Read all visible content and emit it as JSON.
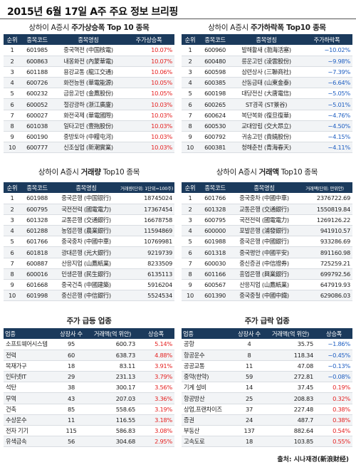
{
  "page": {
    "title": "2015년 6월 17일 A주 주요 정보 브리핑",
    "source": "출처: 시나재경(新浪财经)"
  },
  "gainers": {
    "title_prefix": "상하이 A증시 ",
    "title_bold": "주가상승폭 Top 10 종목",
    "headers": [
      "순위",
      "종목코드",
      "종목명칭",
      "주가상승폭"
    ],
    "rows": [
      [
        "1",
        "601985",
        "중국핵전 (中国核電)",
        "10.07%"
      ],
      [
        "2",
        "600863",
        "내몽화전 (內蒙華電)",
        "10.07%"
      ],
      [
        "3",
        "601188",
        "용강교통 (龍江交通)",
        "10.06%"
      ],
      [
        "4",
        "600726",
        "화전능원 (華電能源)",
        "10.05%"
      ],
      [
        "5",
        "600232",
        "금응고빈 (金鷹股份)",
        "10.05%"
      ],
      [
        "6",
        "600052",
        "절강광하 (浙江廣廈)",
        "10.03%"
      ],
      [
        "7",
        "600027",
        "화전국제 (華電國際)",
        "10.03%"
      ],
      [
        "8",
        "601038",
        "일타고빈 (壹拖股份)",
        "10.03%"
      ],
      [
        "9",
        "600190",
        "중방토아 (中糧屯河)",
        "10.03%"
      ],
      [
        "10",
        "600777",
        "신조실업 (新潮實業)",
        "10.03%"
      ]
    ]
  },
  "losers": {
    "title_prefix": "상하이 A증시 ",
    "title_bold": "주가하락폭 Top10 종목",
    "headers": [
      "순위",
      "종목코드",
      "종목명칭",
      "주가하락폭"
    ],
    "rows": [
      [
        "1",
        "600960",
        "발해활새 (渤海活塞)",
        "−10.02%"
      ],
      [
        "2",
        "600480",
        "릉운고빈 (淩雲股份)",
        "−9.98%"
      ],
      [
        "3",
        "600598",
        "삼련상사 (三聯商社)",
        "−7.39%"
      ],
      [
        "4",
        "600385",
        "산동금태 (山東金泰)",
        "−6.64%"
      ],
      [
        "5",
        "600198",
        "대당전신 (大唐電信)",
        "−5.05%"
      ],
      [
        "6",
        "600265",
        "ST경곡 (ST景谷)",
        "−5.01%"
      ],
      [
        "7",
        "600624",
        "복단복화 (復旦復華)",
        "−4.76%"
      ],
      [
        "8",
        "600530",
        "교대앙립 (交大昂立)",
        "−4.50%"
      ],
      [
        "9",
        "600792",
        "귀송고빈 (貴鐃股份)",
        "−4.15%"
      ],
      [
        "10",
        "600381",
        "청해춘천 (青海春天)",
        "−4.11%"
      ]
    ]
  },
  "volume_top": {
    "title_prefix": "상하이 A증시 ",
    "title_bold": "거래량",
    "title_suffix": " Top10 종목",
    "headers": [
      "순위",
      "종목코드",
      "종목명칭",
      "거래량(단위: 1단위=100주)"
    ],
    "rows": [
      [
        "1",
        "601988",
        "중국은행 (中国银行)",
        "18745024"
      ],
      [
        "2",
        "600795",
        "국전전력 (國電電力)",
        "17367454"
      ],
      [
        "3",
        "601328",
        "교통은행 (交通銀行)",
        "16678758"
      ],
      [
        "4",
        "601288",
        "농업은행 (農業銀行)",
        "11594869"
      ],
      [
        "5",
        "601766",
        "중국중차 (中國中車)",
        "10769981"
      ],
      [
        "6",
        "601818",
        "광대은행 (光大銀行)",
        "9219739"
      ],
      [
        "7",
        "600887",
        "산응지업 (山鷹紙業)",
        "8233509"
      ],
      [
        "8",
        "600016",
        "민생은행 (民生銀行)",
        "6135113"
      ],
      [
        "9",
        "601668",
        "중국건축 (中國建築)",
        "5916204"
      ],
      [
        "10",
        "601998",
        "중신은행 (中信銀行)",
        "5524534"
      ]
    ]
  },
  "value_top": {
    "title_prefix": "상하이 A증시 ",
    "title_bold": "거래액",
    "title_suffix": " Top10 종목",
    "headers": [
      "순위",
      "종목코드",
      "종목명칭",
      "거래액(단위: 만위안)"
    ],
    "rows": [
      [
        "1",
        "601766",
        "중국중차 (中國中車)",
        "2376722.69"
      ],
      [
        "2",
        "601328",
        "교통은행 (交通銀行)",
        "1550819.84"
      ],
      [
        "3",
        "600795",
        "국전전력 (國電電力)",
        "1269126.22"
      ],
      [
        "4",
        "600000",
        "포발은행 (浦發銀行)",
        "941910.57"
      ],
      [
        "5",
        "601988",
        "중국은행 (中國銀行)",
        "933286.69"
      ],
      [
        "6",
        "601318",
        "중국평안 (中國平安)",
        "891160.98"
      ],
      [
        "7",
        "600030",
        "중신증권 (中信證券)",
        "725259.21"
      ],
      [
        "8",
        "601166",
        "흥업은행 (興業銀行)",
        "699792.56"
      ],
      [
        "9",
        "600567",
        "산응지업 (山鷹紙業)",
        "647919.93"
      ],
      [
        "10",
        "601390",
        "중국중철 (中國中鐵)",
        "629086.03"
      ]
    ]
  },
  "sector_up": {
    "title": "주가 급등 업종",
    "headers": [
      "업종",
      "상장사 수",
      "거래액(억 위안)",
      "상승폭"
    ],
    "rows": [
      [
        "소프트웨어시스템",
        "95",
        "600.73",
        "5.14%"
      ],
      [
        "전력",
        "60",
        "638.73",
        "4.88%"
      ],
      [
        "목재가구",
        "18",
        "83.11",
        "3.91%"
      ],
      [
        "인터넷IT",
        "29",
        "231.13",
        "3.79%"
      ],
      [
        "석탄",
        "38",
        "300.17",
        "3.56%"
      ],
      [
        "무역",
        "43",
        "207.03",
        "3.36%"
      ],
      [
        "건축",
        "85",
        "558.65",
        "3.19%"
      ],
      [
        "수상운수",
        "11",
        "116.55",
        "3.18%"
      ],
      [
        "전자 기기",
        "115",
        "586.83",
        "3.08%"
      ],
      [
        "유색금속",
        "56",
        "304.68",
        "2.95%"
      ]
    ]
  },
  "sector_down": {
    "title": "주가 급락 업종",
    "headers": [
      "업종",
      "상장사 수",
      "거래액(억 위안)",
      "상승폭"
    ],
    "rows": [
      [
        "공항",
        "4",
        "35.75",
        "−1.86%"
      ],
      [
        "항공운수",
        "8",
        "118.34",
        "−0.45%"
      ],
      [
        "공공교통",
        "11",
        "47.08",
        "−0.13%"
      ],
      [
        "중약(한약)",
        "59",
        "272.81",
        "−0.08%"
      ],
      [
        "기계 설비",
        "14",
        "37.45",
        "0.19%"
      ],
      [
        "항공방산",
        "25",
        "208.83",
        "0.32%"
      ],
      [
        "상업,프랜차이즈",
        "37",
        "227.48",
        "0.38%"
      ],
      [
        "증권",
        "24",
        "487.7",
        "0.38%"
      ],
      [
        "부동산",
        "137",
        "882.64",
        "0.54%"
      ],
      [
        "고속도로",
        "18",
        "103.85",
        "0.55%"
      ]
    ]
  },
  "colors": {
    "header_bg": "#1b3a5c",
    "up": "#e52222",
    "down": "#1f5fc2"
  }
}
